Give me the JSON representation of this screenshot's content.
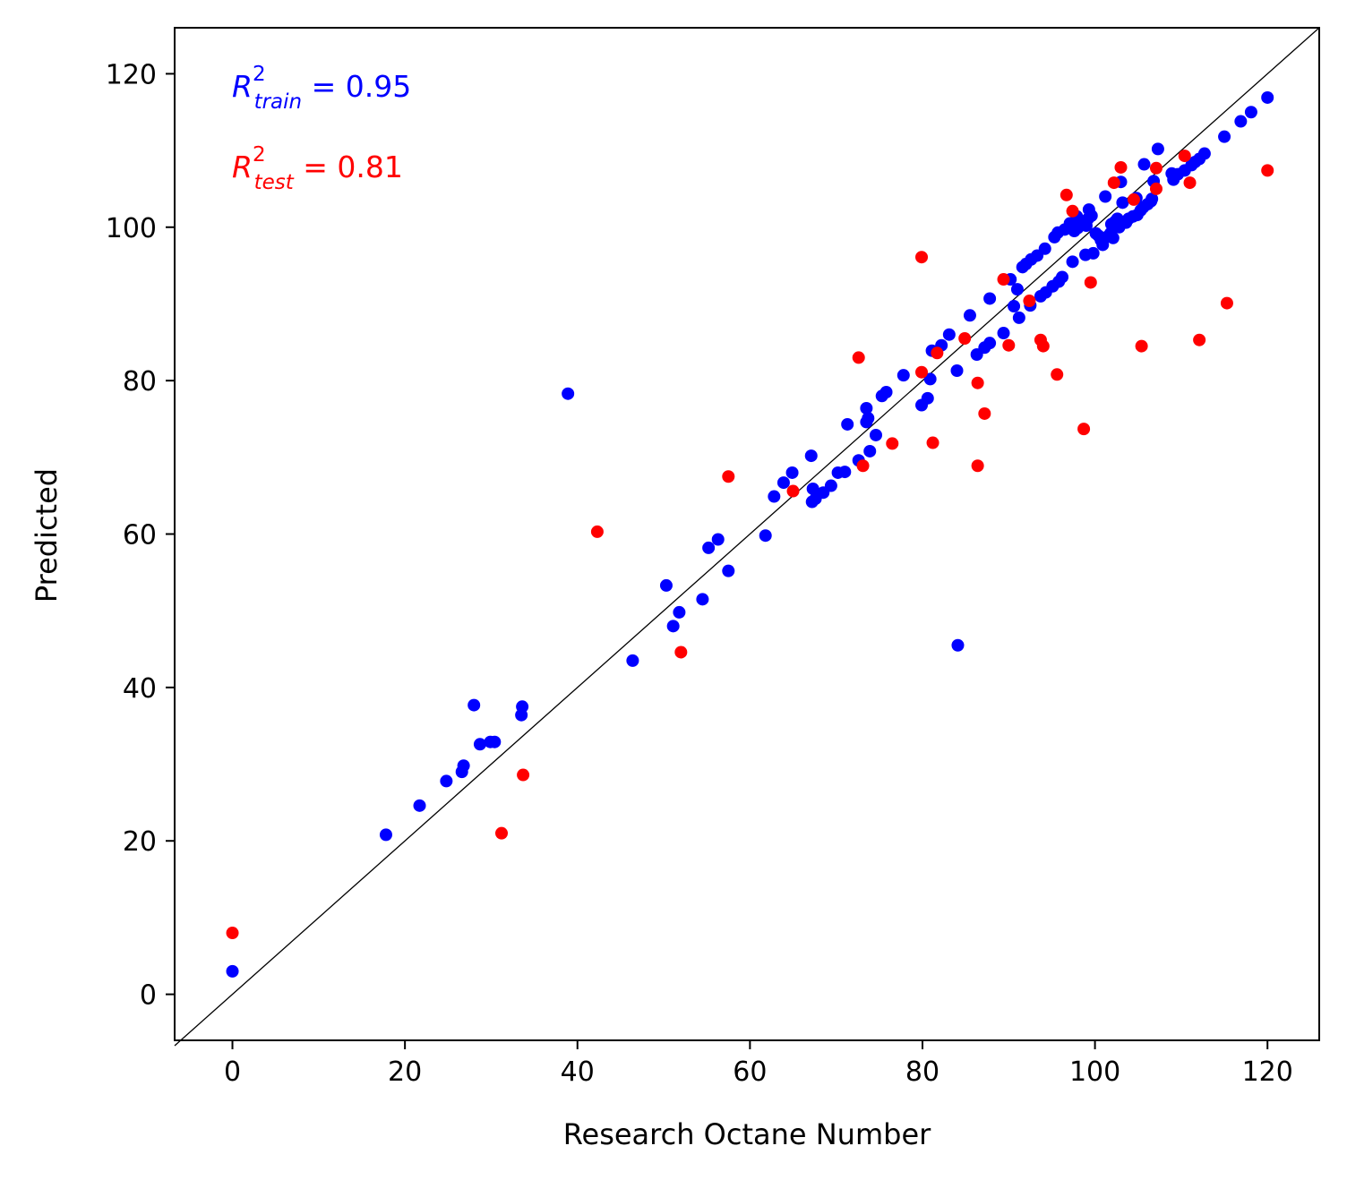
{
  "chart_data": {
    "type": "scatter",
    "title": "",
    "xlabel": "Research Octane Number",
    "ylabel": "Predicted",
    "xlim": [
      -6.7,
      126
    ],
    "ylim": [
      -6,
      126
    ],
    "xticks": [
      0,
      20,
      40,
      60,
      80,
      100,
      120
    ],
    "yticks": [
      0,
      20,
      40,
      60,
      80,
      100,
      120
    ],
    "grid": false,
    "reference_line": "y = x",
    "annotations": [
      {
        "base": "R",
        "sup": "2",
        "sub": "train",
        "rest": " = 0.95",
        "color": "#0000ff"
      },
      {
        "base": "R",
        "sup": "2",
        "sub": "test",
        "rest": " = 0.81",
        "color": "#ff0000"
      }
    ],
    "series": [
      {
        "color": "#0000ff",
        "points": [
          [
            0,
            3
          ],
          [
            17.8,
            20.8
          ],
          [
            21.7,
            24.6
          ],
          [
            24.8,
            27.8
          ],
          [
            26.6,
            29
          ],
          [
            26.8,
            29.8
          ],
          [
            28,
            37.7
          ],
          [
            28.7,
            32.6
          ],
          [
            29.9,
            32.9
          ],
          [
            30.4,
            32.9
          ],
          [
            33.5,
            36.4
          ],
          [
            33.6,
            37.5
          ],
          [
            38.9,
            78.3
          ],
          [
            46.4,
            43.5
          ],
          [
            50.3,
            53.3
          ],
          [
            51.1,
            48
          ],
          [
            51.8,
            49.8
          ],
          [
            54.5,
            51.5
          ],
          [
            55.2,
            58.2
          ],
          [
            56.3,
            59.3
          ],
          [
            57.5,
            55.2
          ],
          [
            61.8,
            59.8
          ],
          [
            62.8,
            64.9
          ],
          [
            63.9,
            66.7
          ],
          [
            64.9,
            68
          ],
          [
            67.1,
            70.2
          ],
          [
            67.2,
            64.2
          ],
          [
            67.3,
            65.9
          ],
          [
            67.6,
            64.6
          ],
          [
            68.5,
            65.4
          ],
          [
            69.4,
            66.3
          ],
          [
            70.2,
            68
          ],
          [
            71,
            68.1
          ],
          [
            71.3,
            74.3
          ],
          [
            72.6,
            69.6
          ],
          [
            73.5,
            76.4
          ],
          [
            73.5,
            74.6
          ],
          [
            73.7,
            75.1
          ],
          [
            73.9,
            70.8
          ],
          [
            74.6,
            72.9
          ],
          [
            75.3,
            78
          ],
          [
            75.8,
            78.5
          ],
          [
            77.8,
            80.7
          ],
          [
            79.9,
            76.8
          ],
          [
            80.6,
            77.7
          ],
          [
            80.9,
            80.2
          ],
          [
            81.1,
            83.9
          ],
          [
            82.2,
            84.6
          ],
          [
            83.1,
            86
          ],
          [
            84,
            81.3
          ],
          [
            84.1,
            45.5
          ],
          [
            85.5,
            88.5
          ],
          [
            86.3,
            83.4
          ],
          [
            87.2,
            84.3
          ],
          [
            87.8,
            90.7
          ],
          [
            87.8,
            84.9
          ],
          [
            89.4,
            86.2
          ],
          [
            90.2,
            93.2
          ],
          [
            90.6,
            89.7
          ],
          [
            91,
            91.9
          ],
          [
            91.2,
            88.2
          ],
          [
            91.6,
            94.8
          ],
          [
            92,
            95.2
          ],
          [
            92.5,
            89.8
          ],
          [
            92.6,
            95.8
          ],
          [
            93.3,
            96.3
          ],
          [
            93.7,
            91
          ],
          [
            94.2,
            97.2
          ],
          [
            94.3,
            91.5
          ],
          [
            95.1,
            92.3
          ],
          [
            95.3,
            98.7
          ],
          [
            95.7,
            99.3
          ],
          [
            95.8,
            92.9
          ],
          [
            96.2,
            93.5
          ],
          [
            96.5,
            99.7
          ],
          [
            97.1,
            100.5
          ],
          [
            97.4,
            95.5
          ],
          [
            97.6,
            99.5
          ],
          [
            97.9,
            101.4
          ],
          [
            98,
            99.9
          ],
          [
            98.5,
            100.6
          ],
          [
            98.9,
            96.4
          ],
          [
            99,
            100.2
          ],
          [
            99.2,
            101.1
          ],
          [
            99.3,
            102.3
          ],
          [
            99.6,
            101.5
          ],
          [
            99.8,
            96.6
          ],
          [
            100.1,
            99.2
          ],
          [
            100.4,
            98.9
          ],
          [
            100.7,
            98.3
          ],
          [
            100.9,
            97.7
          ],
          [
            101.2,
            104
          ],
          [
            101.5,
            98.8
          ],
          [
            101.8,
            99.2
          ],
          [
            101.9,
            100.4
          ],
          [
            102.1,
            98.6
          ],
          [
            102.3,
            100.7
          ],
          [
            102.6,
            101.1
          ],
          [
            102.8,
            100
          ],
          [
            103,
            105.9
          ],
          [
            103.2,
            103.2
          ],
          [
            103.6,
            100.6
          ],
          [
            103.9,
            101.1
          ],
          [
            104.4,
            101.4
          ],
          [
            104.8,
            103.8
          ],
          [
            104.9,
            101.6
          ],
          [
            105.3,
            102.2
          ],
          [
            105.6,
            102.6
          ],
          [
            105.7,
            108.2
          ],
          [
            106.1,
            103
          ],
          [
            106.5,
            103.4
          ],
          [
            106.6,
            103.7
          ],
          [
            106.8,
            106
          ],
          [
            107.3,
            110.2
          ],
          [
            108.9,
            107
          ],
          [
            109.1,
            106.2
          ],
          [
            109.6,
            106.9
          ],
          [
            110.4,
            107.4
          ],
          [
            111.2,
            108.1
          ],
          [
            111.6,
            108.5
          ],
          [
            112.1,
            108.9
          ],
          [
            112.7,
            109.6
          ],
          [
            115,
            111.8
          ],
          [
            116.9,
            113.8
          ],
          [
            118.1,
            115
          ],
          [
            120,
            116.9
          ]
        ]
      },
      {
        "color": "#ff0000",
        "points": [
          [
            0,
            8
          ],
          [
            31.2,
            21
          ],
          [
            33.7,
            28.6
          ],
          [
            42.3,
            60.3
          ],
          [
            52,
            44.6
          ],
          [
            57.5,
            67.5
          ],
          [
            65,
            65.6
          ],
          [
            72.6,
            83
          ],
          [
            73.1,
            68.9
          ],
          [
            76.5,
            71.8
          ],
          [
            79.9,
            96.1
          ],
          [
            79.9,
            81.1
          ],
          [
            81.2,
            71.9
          ],
          [
            81.7,
            83.6
          ],
          [
            84.9,
            85.5
          ],
          [
            86.4,
            79.7
          ],
          [
            86.4,
            68.9
          ],
          [
            87.2,
            75.7
          ],
          [
            89.4,
            93.2
          ],
          [
            90,
            84.6
          ],
          [
            92.4,
            90.4
          ],
          [
            93.7,
            85.3
          ],
          [
            94,
            84.5
          ],
          [
            95.6,
            80.8
          ],
          [
            96.7,
            104.2
          ],
          [
            97.4,
            102.1
          ],
          [
            98.7,
            73.7
          ],
          [
            99.5,
            92.8
          ],
          [
            102.2,
            105.8
          ],
          [
            103,
            107.8
          ],
          [
            104.5,
            103.6
          ],
          [
            105.4,
            84.5
          ],
          [
            107.1,
            107.7
          ],
          [
            107.1,
            105
          ],
          [
            110.4,
            109.3
          ],
          [
            111,
            105.8
          ],
          [
            112.1,
            85.3
          ],
          [
            115.3,
            90.1
          ],
          [
            120,
            107.4
          ]
        ]
      }
    ]
  }
}
